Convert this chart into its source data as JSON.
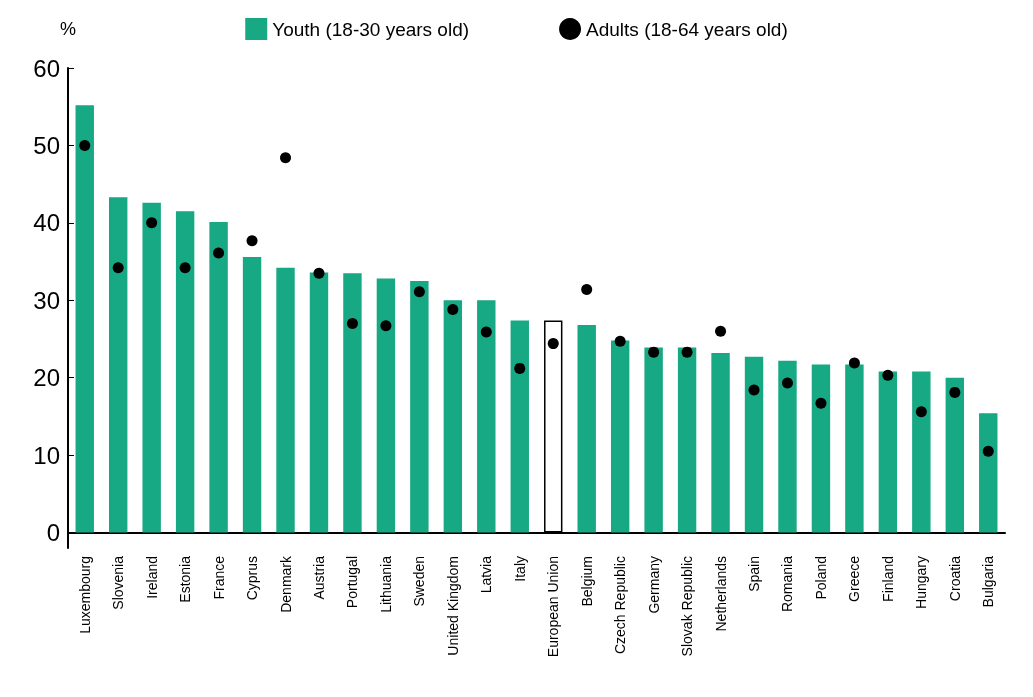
{
  "chart_data": {
    "type": "bar",
    "ylabel": "%",
    "legend": "top",
    "grid": false,
    "marker": "circle",
    "categories": [
      "Luxembourg",
      "Slovenia",
      "Ireland",
      "Estonia",
      "France",
      "Cyprus",
      "Denmark",
      "Austria",
      "Portugal",
      "Lithuania",
      "Sweden",
      "United Kingdom",
      "Latvia",
      "Italy",
      "European Union",
      "Belgium",
      "Czech Republic",
      "Germany",
      "Slovak Republic",
      "Netherlands",
      "Spain",
      "Romania",
      "Poland",
      "Greece",
      "Finland",
      "Hungary",
      "Croatia",
      "Bulgaria"
    ],
    "ylim": [
      -2,
      60
    ],
    "yticks": [
      0,
      10,
      20,
      30,
      40,
      50,
      60
    ],
    "series": [
      {
        "name": "Youth (18-30 years old)",
        "color": "#17a884",
        "colors": [
          "#17a884",
          "#17a884",
          "#17a884",
          "#17a884",
          "#17a884",
          "#17a884",
          "#17a884",
          "#17a884",
          "#17a884",
          "#17a884",
          "#17a884",
          "#17a884",
          "#17a884",
          "#17a884",
          "#ffffff",
          "#17a884",
          "#17a884",
          "#17a884",
          "#17a884",
          "#17a884",
          "#17a884",
          "#17a884",
          "#17a884",
          "#17a884",
          "#17a884",
          "#17a884",
          "#17a884",
          "#17a884"
        ],
        "values": [
          55.2,
          43.3,
          42.6,
          41.5,
          40.1,
          35.6,
          34.2,
          33.6,
          33.5,
          32.8,
          32.5,
          30.0,
          30.0,
          27.4,
          27.4,
          26.8,
          24.8,
          23.9,
          23.9,
          23.2,
          22.7,
          22.2,
          21.7,
          21.7,
          20.8,
          20.8,
          20.0,
          15.4
        ]
      },
      {
        "name": "Adults (18-64 years old)",
        "type": "scatter",
        "color": "#000000",
        "values": [
          50.0,
          34.2,
          40.0,
          34.2,
          36.1,
          37.7,
          48.4,
          33.5,
          27.0,
          26.7,
          31.1,
          28.8,
          25.9,
          21.2,
          24.4,
          31.4,
          24.7,
          23.3,
          23.3,
          26.0,
          18.4,
          19.3,
          16.7,
          21.9,
          20.3,
          15.6,
          18.1,
          10.5
        ]
      }
    ]
  }
}
